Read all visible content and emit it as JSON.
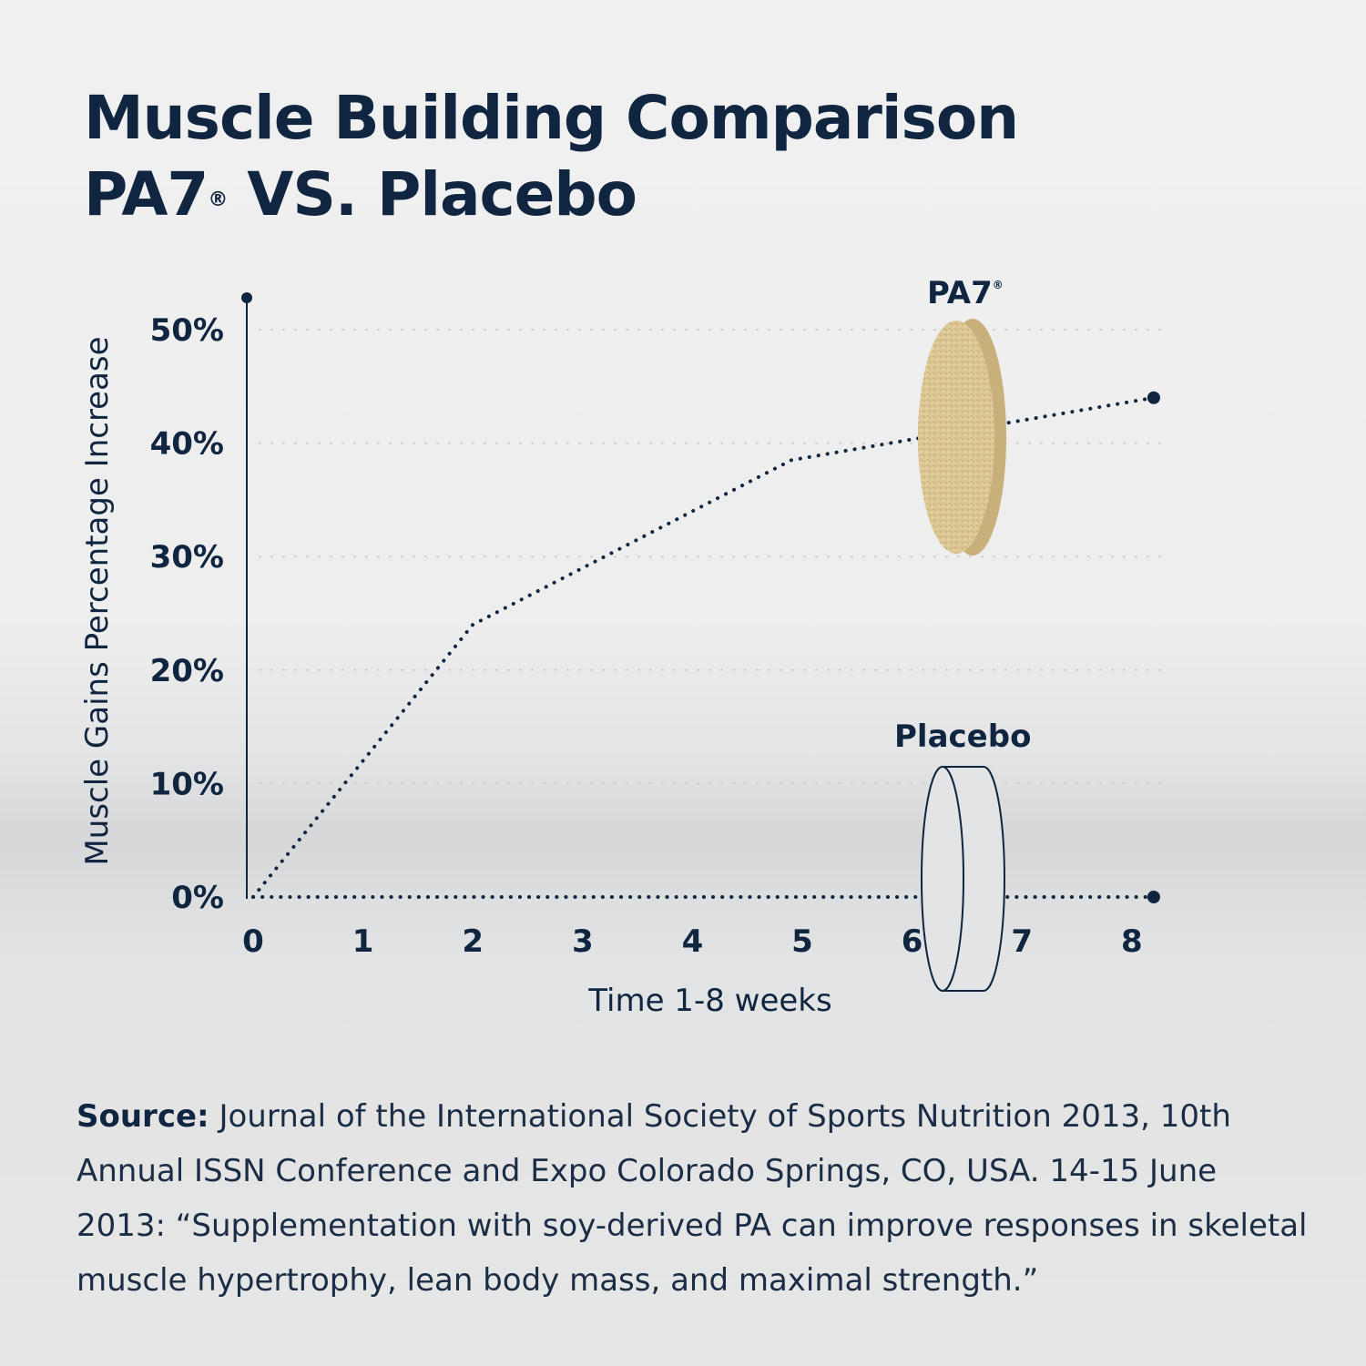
{
  "title_line1": "Muscle Building Comparison",
  "title_line2": "PA7",
  "title_mark": "®",
  "title_line2_rest": " VS. Placebo",
  "chart_data": {
    "type": "line",
    "ylabel": "Muscle Gains Percentage Increase",
    "xlabel": "Time 1-8 weeks",
    "ylim": [
      0,
      53
    ],
    "xlim": [
      0,
      8.2
    ],
    "yticks": [
      "0%",
      "10%",
      "20%",
      "30%",
      "40%",
      "50%"
    ],
    "ytick_values": [
      0,
      10,
      20,
      30,
      40,
      50
    ],
    "xticks": [
      "0",
      "1",
      "2",
      "3",
      "4",
      "5",
      "6",
      "7",
      "8"
    ],
    "grid": "horizontal dotted",
    "series": [
      {
        "name": "PA7®",
        "color": "#0f2540",
        "style": "dotted",
        "points": [
          [
            0,
            0
          ],
          [
            2,
            24
          ],
          [
            4.9,
            38.5
          ],
          [
            6.1,
            40.5
          ],
          [
            8.2,
            44
          ]
        ]
      },
      {
        "name": "Placebo",
        "color": "#0f2540",
        "style": "dotted",
        "points": [
          [
            0,
            0
          ],
          [
            8.2,
            0
          ]
        ]
      }
    ]
  },
  "labels": {
    "pa7": "PA7",
    "pa7_mark": "®",
    "placebo": "Placebo"
  },
  "source": {
    "label": "Source:",
    "text": " Journal of the International Society of Sports Nutrition 2013, 10th Annual ISSN Conference and Expo Colorado Springs, CO, USA. 14-15 June 2013: “Supplementation with soy-derived PA can improve responses in skeletal muscle hypertrophy, lean body mass, and maximal strength.”"
  },
  "colors": {
    "text": "#0f2540",
    "tablet": "#d9c48f"
  }
}
